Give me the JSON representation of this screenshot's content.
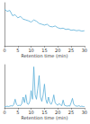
{
  "chart_data": [
    {
      "type": "line",
      "x_label": "Retention time (min)",
      "color": "#5aaed8",
      "x": [
        0,
        1,
        2,
        3,
        4,
        5,
        6,
        7,
        8,
        9,
        10,
        11,
        12,
        13,
        14,
        15,
        16,
        17,
        18,
        19,
        20,
        21,
        22,
        23,
        24,
        25,
        26,
        27,
        28,
        29,
        30
      ],
      "values": [
        85,
        80,
        82,
        70,
        72,
        65,
        68,
        62,
        60,
        58,
        55,
        60,
        57,
        52,
        50,
        48,
        50,
        45,
        44,
        46,
        42,
        40,
        41,
        38,
        39,
        36,
        37,
        35,
        36,
        34,
        35
      ],
      "xlim": [
        0,
        30
      ],
      "xticks": [
        0,
        5,
        10,
        15,
        20,
        25,
        30
      ],
      "ylim": [
        0,
        100
      ],
      "tick_labels": "x",
      "grid": false
    },
    {
      "type": "line",
      "x_label": "Retention time (min)",
      "color": "#5aaed8",
      "x": [
        0,
        0.5,
        1,
        1.5,
        2,
        2.5,
        3,
        3.5,
        4,
        4.5,
        5,
        5.5,
        6,
        6.5,
        7,
        7.5,
        8,
        8.5,
        9,
        9.5,
        10,
        10.5,
        11,
        11.5,
        12,
        12.5,
        13,
        13.5,
        14,
        14.5,
        15,
        15.5,
        16,
        16.5,
        17,
        17.5,
        18,
        18.5,
        19,
        19.5,
        20,
        20.5,
        21,
        21.5,
        22,
        22.5,
        23,
        23.5,
        24,
        24.5,
        25,
        25.5,
        26,
        26.5,
        27,
        27.5,
        28,
        28.5,
        29,
        29.5,
        30
      ],
      "values": [
        3,
        3,
        4,
        3,
        4,
        5,
        4,
        8,
        20,
        8,
        5,
        6,
        5,
        10,
        25,
        12,
        30,
        10,
        8,
        15,
        40,
        20,
        95,
        30,
        20,
        45,
        75,
        25,
        15,
        30,
        55,
        20,
        10,
        25,
        12,
        8,
        15,
        30,
        12,
        8,
        6,
        10,
        7,
        5,
        18,
        6,
        5,
        4,
        5,
        4,
        12,
        22,
        8,
        5,
        4,
        4,
        5,
        3,
        4,
        3,
        3
      ],
      "xlim": [
        0,
        30
      ],
      "xticks": [
        0,
        5,
        10,
        15,
        20,
        25,
        30
      ],
      "ylim": [
        0,
        100
      ],
      "tick_labels": "x",
      "grid": false
    }
  ]
}
